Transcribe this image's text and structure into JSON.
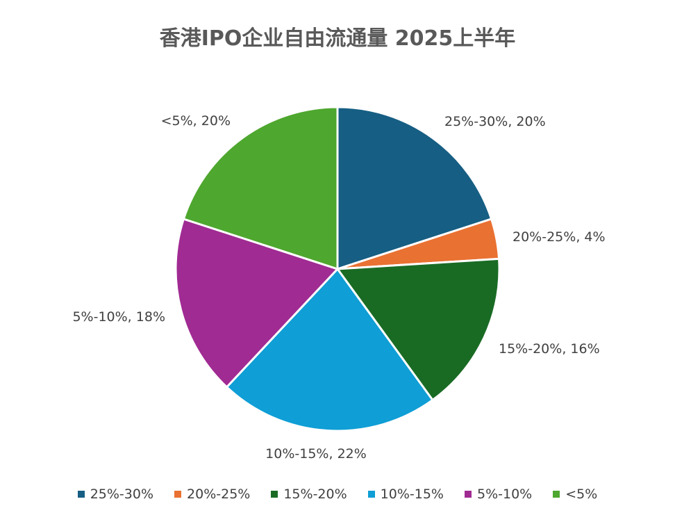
{
  "chart_data": {
    "type": "pie",
    "title": "香港IPO企业自由流通量 2025上半年",
    "slices": [
      {
        "label": "25%-30%",
        "value": 20,
        "data_label": "25%-30%, 20%",
        "color": "#165E83"
      },
      {
        "label": "20%-25%",
        "value": 4,
        "data_label": "20%-25%, 4%",
        "color": "#E97132"
      },
      {
        "label": "15%-20%",
        "value": 16,
        "data_label": "15%-20%, 16%",
        "color": "#196B24"
      },
      {
        "label": "10%-15%",
        "value": 22,
        "data_label": "10%-15%, 22%",
        "color": "#0F9ED5"
      },
      {
        "label": "5%-10%",
        "value": 18,
        "data_label": "5%-10%, 18%",
        "color": "#A02B93"
      },
      {
        "label": "<5%",
        "value": 20,
        "data_label": "<5%, 20%",
        "color": "#4EA72E"
      }
    ],
    "legend_position": "bottom"
  }
}
